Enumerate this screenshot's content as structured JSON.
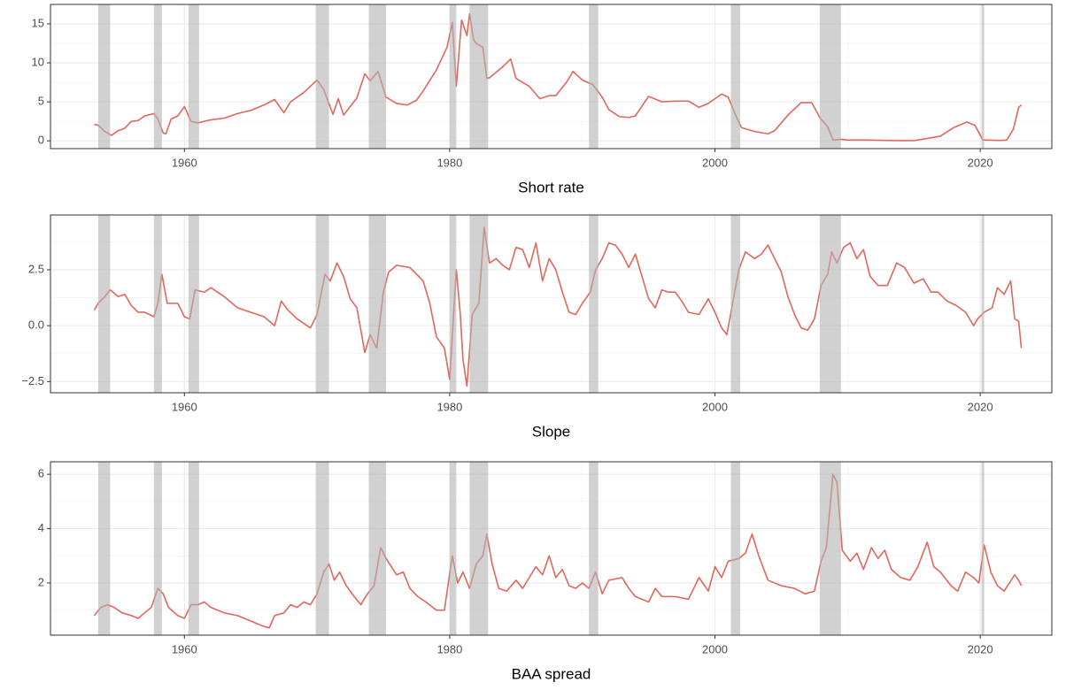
{
  "chart_data": [
    {
      "type": "line",
      "x_label": "Short rate",
      "color": "#e0675c",
      "grid": true,
      "xlim": [
        1949.9,
        2025.4
      ],
      "xticks": [
        1960,
        1980,
        2000,
        2020
      ],
      "ylim": [
        -1.0,
        17.5
      ],
      "yticks": [
        0,
        5,
        10,
        15
      ],
      "recessions": [
        [
          1953.5,
          1954.4
        ],
        [
          1957.7,
          1958.3
        ],
        [
          1960.3,
          1961.1
        ],
        [
          1969.9,
          1970.9
        ],
        [
          1973.9,
          1975.2
        ],
        [
          1980.0,
          1980.5
        ],
        [
          1981.5,
          1982.9
        ],
        [
          1990.5,
          1991.2
        ],
        [
          2001.2,
          2001.9
        ],
        [
          2007.9,
          2009.5
        ],
        [
          2020.1,
          2020.3
        ]
      ],
      "x": [
        1953.2,
        1953.5,
        1954.0,
        1954.5,
        1955.0,
        1955.5,
        1956.0,
        1956.5,
        1957.0,
        1957.7,
        1958.0,
        1958.4,
        1958.6,
        1959.0,
        1959.5,
        1960.0,
        1960.5,
        1961.0,
        1962.0,
        1963.0,
        1964.0,
        1965.0,
        1966.0,
        1966.8,
        1967.5,
        1968.0,
        1969.0,
        1970.0,
        1970.5,
        1971.2,
        1971.6,
        1972.0,
        1973.0,
        1973.6,
        1974.0,
        1974.6,
        1975.2,
        1976.0,
        1976.8,
        1977.5,
        1978.0,
        1979.0,
        1979.8,
        1980.2,
        1980.5,
        1980.9,
        1981.3,
        1981.5,
        1981.8,
        1982.0,
        1982.5,
        1982.8,
        1983.0,
        1984.0,
        1984.6,
        1985.0,
        1986.0,
        1986.8,
        1987.5,
        1988.0,
        1988.8,
        1989.3,
        1990.0,
        1990.8,
        1991.5,
        1992.0,
        1992.8,
        1993.5,
        1994.0,
        1995.0,
        1996.0,
        1997.0,
        1998.0,
        1998.8,
        1999.5,
        2000.5,
        2001.0,
        2001.5,
        2002.0,
        2003.0,
        2004.0,
        2004.5,
        2005.5,
        2006.5,
        2007.3,
        2007.9,
        2008.5,
        2008.9,
        2009.5,
        2010.0,
        2011.0,
        2012.0,
        2013.0,
        2014.0,
        2015.0,
        2016.0,
        2017.0,
        2018.0,
        2019.0,
        2019.6,
        2020.2,
        2020.5,
        2021.5,
        2022.0,
        2022.5,
        2022.9,
        2023.1
      ],
      "values": [
        2.1,
        2.0,
        1.2,
        0.7,
        1.3,
        1.6,
        2.5,
        2.6,
        3.2,
        3.5,
        2.8,
        1.0,
        0.9,
        2.8,
        3.2,
        4.4,
        2.5,
        2.3,
        2.7,
        2.9,
        3.5,
        3.9,
        4.6,
        5.3,
        3.6,
        5.0,
        6.2,
        7.8,
        6.6,
        3.4,
        5.4,
        3.3,
        5.5,
        8.6,
        7.7,
        8.9,
        5.6,
        4.8,
        4.6,
        5.2,
        6.4,
        9.1,
        12.0,
        15.2,
        7.0,
        15.5,
        13.5,
        16.3,
        13.0,
        12.5,
        12.0,
        8.0,
        8.1,
        9.5,
        10.5,
        8.0,
        7.0,
        5.4,
        5.8,
        5.8,
        7.5,
        8.9,
        7.8,
        7.2,
        5.6,
        4.0,
        3.1,
        3.0,
        3.2,
        5.7,
        5.0,
        5.1,
        5.1,
        4.3,
        4.8,
        6.0,
        5.6,
        3.5,
        1.7,
        1.2,
        0.9,
        1.3,
        3.3,
        4.9,
        4.9,
        3.0,
        1.8,
        0.1,
        0.2,
        0.1,
        0.1,
        0.08,
        0.05,
        0.03,
        0.02,
        0.3,
        0.6,
        1.7,
        2.4,
        2.0,
        0.1,
        0.1,
        0.05,
        0.1,
        1.5,
        4.3,
        4.6
      ]
    },
    {
      "type": "line",
      "x_label": "Slope",
      "color": "#e0675c",
      "grid": true,
      "xlim": [
        1949.9,
        2025.4
      ],
      "xticks": [
        1960,
        1980,
        2000,
        2020
      ],
      "ylim": [
        -3.0,
        4.95
      ],
      "yticks": [
        {
          "value": -2.5,
          "label": "−2.5"
        },
        {
          "value": 0,
          "label": "0.0"
        },
        2.5
      ],
      "recessions": [
        [
          1953.5,
          1954.4
        ],
        [
          1957.7,
          1958.3
        ],
        [
          1960.3,
          1961.1
        ],
        [
          1969.9,
          1970.9
        ],
        [
          1973.9,
          1975.2
        ],
        [
          1980.0,
          1980.5
        ],
        [
          1981.5,
          1982.9
        ],
        [
          1990.5,
          1991.2
        ],
        [
          2001.2,
          2001.9
        ],
        [
          2007.9,
          2009.5
        ],
        [
          2020.1,
          2020.3
        ]
      ],
      "x": [
        1953.2,
        1953.5,
        1954.0,
        1954.4,
        1955.0,
        1955.5,
        1956.0,
        1956.5,
        1957.0,
        1957.7,
        1958.0,
        1958.3,
        1958.7,
        1959.5,
        1960.0,
        1960.4,
        1960.8,
        1961.5,
        1962.0,
        1963.0,
        1964.0,
        1965.0,
        1966.0,
        1966.8,
        1967.3,
        1967.8,
        1968.5,
        1969.5,
        1970.0,
        1970.6,
        1971.0,
        1971.5,
        1972.0,
        1972.5,
        1973.0,
        1973.6,
        1974.0,
        1974.5,
        1975.0,
        1975.4,
        1976.0,
        1977.0,
        1978.0,
        1978.5,
        1979.0,
        1979.6,
        1980.0,
        1980.5,
        1980.8,
        1981.0,
        1981.3,
        1981.7,
        1982.2,
        1982.6,
        1983.0,
        1983.5,
        1984.0,
        1984.5,
        1985.0,
        1985.5,
        1986.0,
        1986.5,
        1987.0,
        1987.5,
        1988.0,
        1988.5,
        1989.0,
        1989.5,
        1990.0,
        1990.6,
        1991.0,
        1991.5,
        1992.0,
        1992.5,
        1993.0,
        1993.5,
        1994.0,
        1994.5,
        1995.0,
        1995.5,
        1996.0,
        1996.5,
        1997.0,
        1997.5,
        1998.0,
        1998.8,
        1999.5,
        2000.0,
        2000.5,
        2000.9,
        2001.3,
        2001.8,
        2002.3,
        2003.0,
        2003.5,
        2004.0,
        2004.5,
        2005.0,
        2005.5,
        2006.0,
        2006.5,
        2007.0,
        2007.5,
        2008.0,
        2008.5,
        2008.8,
        2009.2,
        2009.7,
        2010.2,
        2010.7,
        2011.2,
        2011.7,
        2012.3,
        2013.0,
        2013.7,
        2014.3,
        2015.0,
        2015.7,
        2016.3,
        2016.8,
        2017.5,
        2018.2,
        2018.9,
        2019.5,
        2019.8,
        2020.3,
        2020.9,
        2021.3,
        2021.8,
        2022.3,
        2022.6,
        2022.9,
        2023.1
      ],
      "values": [
        0.7,
        1.0,
        1.3,
        1.6,
        1.3,
        1.4,
        0.9,
        0.6,
        0.6,
        0.4,
        1.0,
        2.3,
        1.0,
        1.0,
        0.4,
        0.3,
        1.6,
        1.5,
        1.7,
        1.3,
        0.8,
        0.6,
        0.4,
        0.0,
        1.1,
        0.7,
        0.3,
        -0.1,
        0.5,
        2.3,
        2.0,
        2.8,
        2.2,
        1.2,
        0.8,
        -1.2,
        -0.4,
        -1.0,
        1.5,
        2.4,
        2.7,
        2.6,
        2.0,
        1.0,
        -0.5,
        -1.0,
        -2.4,
        2.5,
        0.5,
        -1.5,
        -2.7,
        0.5,
        1.0,
        4.4,
        2.8,
        3.0,
        2.7,
        2.5,
        3.5,
        3.4,
        2.6,
        3.7,
        2.0,
        3.0,
        2.5,
        1.5,
        0.6,
        0.5,
        1.0,
        1.5,
        2.5,
        3.0,
        3.7,
        3.6,
        3.2,
        2.6,
        3.2,
        2.2,
        1.2,
        0.8,
        1.6,
        1.5,
        1.5,
        1.1,
        0.6,
        0.5,
        1.2,
        0.6,
        -0.1,
        -0.4,
        0.9,
        2.5,
        3.3,
        3.0,
        3.2,
        3.6,
        3.0,
        2.4,
        1.3,
        0.5,
        -0.1,
        -0.2,
        0.3,
        1.8,
        2.3,
        3.3,
        2.8,
        3.5,
        3.7,
        3.0,
        3.4,
        2.2,
        1.8,
        1.8,
        2.8,
        2.6,
        1.9,
        2.1,
        1.5,
        1.5,
        1.1,
        0.9,
        0.6,
        0.0,
        0.3,
        0.6,
        0.8,
        1.7,
        1.4,
        2.0,
        0.3,
        0.2,
        -1.0
      ]
    },
    {
      "type": "line",
      "x_label": "BAA spread",
      "color": "#e0675c",
      "grid": true,
      "xlim": [
        1949.9,
        2025.4
      ],
      "xticks": [
        1960,
        1980,
        2000,
        2020
      ],
      "ylim": [
        0.08,
        6.46
      ],
      "yticks": [
        2,
        4,
        6
      ],
      "recessions": [
        [
          1953.5,
          1954.4
        ],
        [
          1957.7,
          1958.3
        ],
        [
          1960.3,
          1961.1
        ],
        [
          1969.9,
          1970.9
        ],
        [
          1973.9,
          1975.2
        ],
        [
          1980.0,
          1980.5
        ],
        [
          1981.5,
          1982.9
        ],
        [
          1990.5,
          1991.2
        ],
        [
          2001.2,
          2001.9
        ],
        [
          2007.9,
          2009.5
        ],
        [
          2020.1,
          2020.3
        ]
      ],
      "x": [
        1953.2,
        1953.7,
        1954.2,
        1954.7,
        1955.3,
        1956.0,
        1956.5,
        1957.0,
        1957.5,
        1958.0,
        1958.4,
        1958.8,
        1959.5,
        1960.0,
        1960.5,
        1961.0,
        1961.5,
        1962.0,
        1963.0,
        1964.0,
        1965.0,
        1965.5,
        1966.0,
        1966.4,
        1966.8,
        1967.5,
        1968.0,
        1968.5,
        1969.0,
        1969.5,
        1970.0,
        1970.5,
        1970.9,
        1971.3,
        1971.7,
        1972.2,
        1972.8,
        1973.3,
        1973.8,
        1974.3,
        1974.8,
        1975.2,
        1976.0,
        1976.5,
        1977.0,
        1977.6,
        1978.2,
        1979.0,
        1979.6,
        1980.2,
        1980.6,
        1981.0,
        1981.5,
        1982.0,
        1982.5,
        1982.8,
        1983.2,
        1983.7,
        1984.3,
        1985.0,
        1985.5,
        1986.0,
        1986.5,
        1987.0,
        1987.5,
        1988.0,
        1988.5,
        1989.0,
        1989.5,
        1990.0,
        1990.5,
        1991.0,
        1991.5,
        1992.0,
        1993.0,
        1993.5,
        1994.0,
        1995.0,
        1995.5,
        1996.0,
        1997.0,
        1998.0,
        1998.8,
        1999.5,
        2000.0,
        2000.5,
        2001.0,
        2001.8,
        2002.3,
        2002.8,
        2003.3,
        2004.0,
        2005.0,
        2006.0,
        2006.8,
        2007.5,
        2008.0,
        2008.4,
        2008.9,
        2009.2,
        2009.6,
        2010.2,
        2010.7,
        2011.2,
        2011.8,
        2012.3,
        2012.8,
        2013.3,
        2014.0,
        2014.7,
        2015.3,
        2016.0,
        2016.5,
        2017.0,
        2017.8,
        2018.3,
        2018.9,
        2019.5,
        2019.9,
        2020.3,
        2020.8,
        2021.3,
        2021.8,
        2022.2,
        2022.6,
        2022.9,
        2023.1
      ],
      "values": [
        0.8,
        1.1,
        1.2,
        1.1,
        0.9,
        0.8,
        0.7,
        0.9,
        1.1,
        1.8,
        1.6,
        1.1,
        0.8,
        0.7,
        1.2,
        1.2,
        1.3,
        1.1,
        0.9,
        0.8,
        0.6,
        0.5,
        0.4,
        0.35,
        0.8,
        0.9,
        1.2,
        1.1,
        1.3,
        1.2,
        1.6,
        2.4,
        2.7,
        2.1,
        2.4,
        1.9,
        1.5,
        1.2,
        1.6,
        1.9,
        3.3,
        2.9,
        2.3,
        2.4,
        1.8,
        1.5,
        1.3,
        1.0,
        1.0,
        3.0,
        2.0,
        2.4,
        1.8,
        2.7,
        3.0,
        3.8,
        2.7,
        1.8,
        1.7,
        2.1,
        1.8,
        2.2,
        2.6,
        2.3,
        3.0,
        2.2,
        2.5,
        1.9,
        1.8,
        2.0,
        1.8,
        2.4,
        1.6,
        2.1,
        2.2,
        1.8,
        1.5,
        1.3,
        1.8,
        1.5,
        1.5,
        1.4,
        2.2,
        1.7,
        2.6,
        2.2,
        2.8,
        2.9,
        3.1,
        3.8,
        3.0,
        2.1,
        1.9,
        1.8,
        1.6,
        1.7,
        2.8,
        3.3,
        6.0,
        5.7,
        3.2,
        2.8,
        3.1,
        2.5,
        3.3,
        2.9,
        3.2,
        2.5,
        2.2,
        2.1,
        2.6,
        3.5,
        2.6,
        2.4,
        1.9,
        1.7,
        2.4,
        2.2,
        2.0,
        3.4,
        2.4,
        1.9,
        1.7,
        2.0,
        2.3,
        2.1,
        1.9
      ]
    }
  ]
}
